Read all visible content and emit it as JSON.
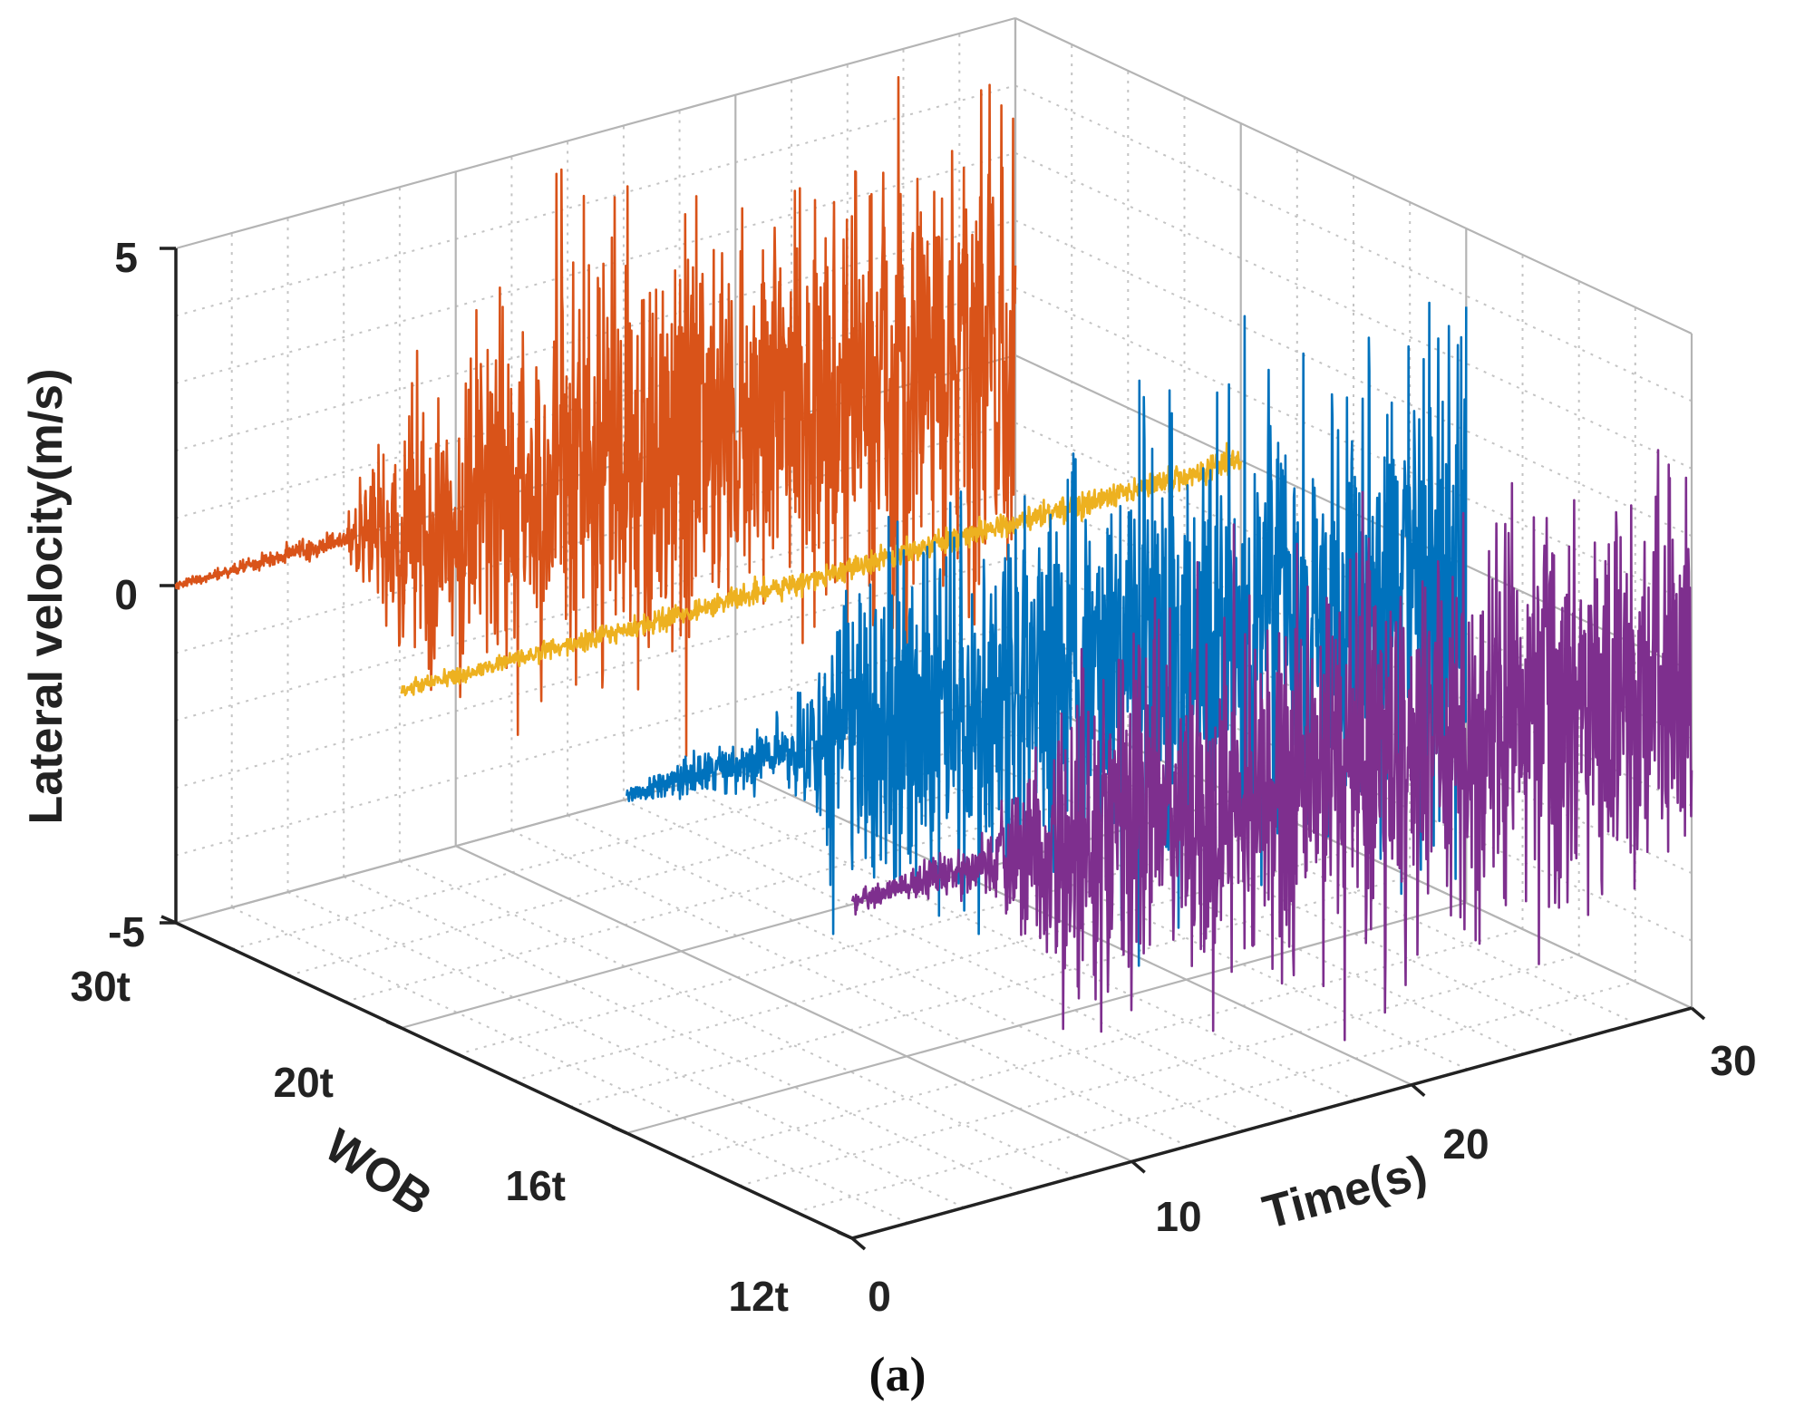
{
  "chart_data": {
    "type": "line",
    "subtype": "3d-waterfall",
    "title": "",
    "caption": "(a)",
    "zlabel": "Lateral velocity(m/s)",
    "xlabel": "Time(s)",
    "ylabel": "WOB",
    "zlim": [
      -5,
      5
    ],
    "zticks": [
      "5",
      "0",
      "-5"
    ],
    "xlim": [
      0,
      30
    ],
    "xticks": [
      "0",
      "10",
      "20",
      "30"
    ],
    "ycategories": [
      "30t",
      "20t",
      "16t",
      "12t"
    ],
    "grid": true,
    "legend": "none",
    "series": [
      {
        "wob": "30t",
        "color": "#D95319",
        "onset_s": 6.5,
        "baseline": 0,
        "amplitude": [
          [
            0,
            0.05
          ],
          [
            6,
            0.15
          ],
          [
            8,
            1.6
          ],
          [
            15,
            2.6
          ],
          [
            22,
            2.5
          ],
          [
            30,
            3.0
          ]
        ]
      },
      {
        "wob": "20t",
        "color": "#EDB120",
        "onset_s": 30,
        "baseline": 0,
        "amplitude": [
          [
            0,
            0.1
          ],
          [
            30,
            0.18
          ]
        ]
      },
      {
        "wob": "16t",
        "color": "#0072BD",
        "onset_s": 8,
        "baseline": 0,
        "amplitude": [
          [
            0,
            0.1
          ],
          [
            6,
            0.45
          ],
          [
            8,
            2.0
          ],
          [
            18,
            2.6
          ],
          [
            30,
            2.9
          ]
        ]
      },
      {
        "wob": "12t",
        "color": "#7E2F8E",
        "onset_s": 8,
        "baseline": 0,
        "amplitude": [
          [
            0,
            0.1
          ],
          [
            5,
            0.35
          ],
          [
            8,
            1.9
          ],
          [
            18,
            2.1
          ],
          [
            30,
            2.4
          ]
        ]
      }
    ]
  }
}
